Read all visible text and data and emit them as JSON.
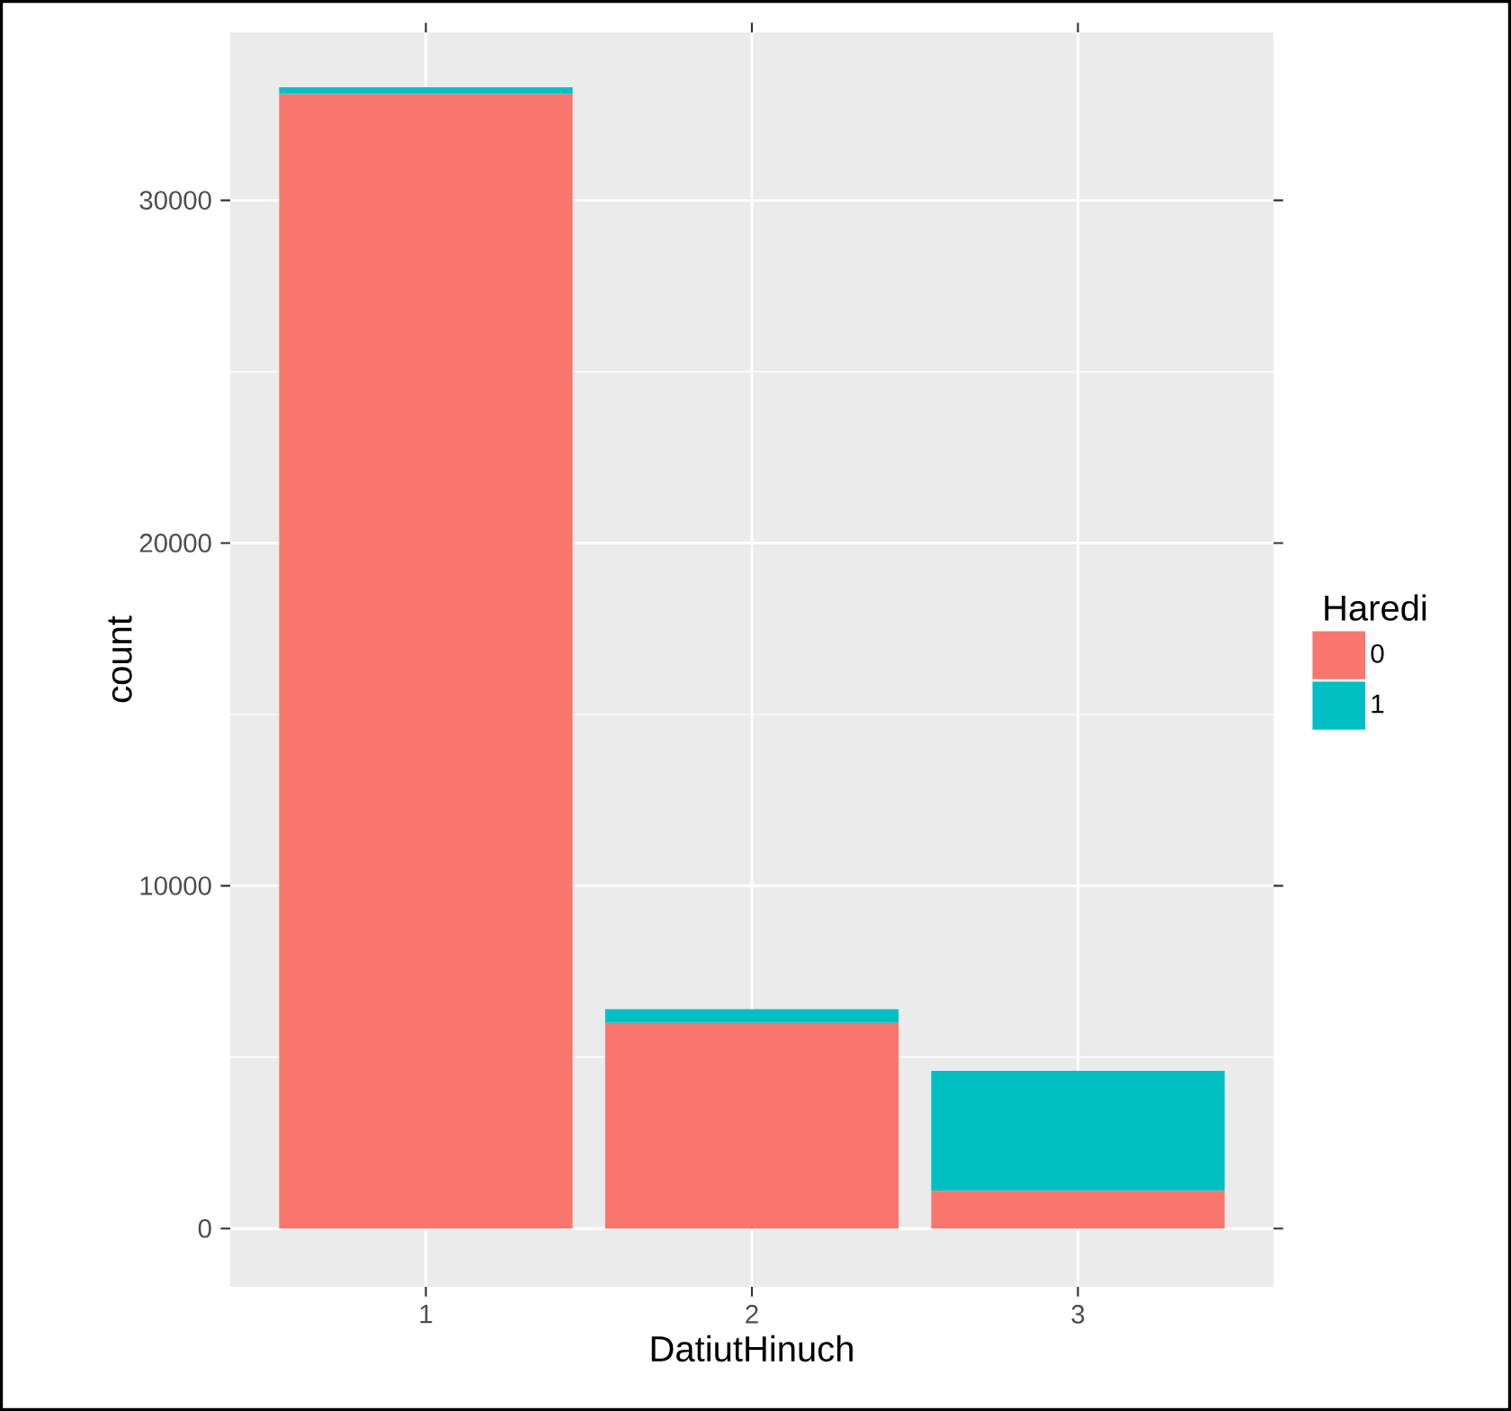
{
  "chart_data": {
    "type": "bar",
    "stacked": true,
    "xlabel": "DatiutHinuch",
    "ylabel": "count",
    "legend_title": "Haredi",
    "categories": [
      "1",
      "2",
      "3"
    ],
    "series": [
      {
        "name": "0",
        "color": "#f8766d",
        "values": [
          33100,
          6000,
          1100
        ]
      },
      {
        "name": "1",
        "color": "#00bfc4",
        "values": [
          200,
          400,
          3500
        ]
      }
    ],
    "ylim": [
      -1700,
      34900
    ],
    "yticks": [
      0,
      10000,
      20000,
      30000
    ],
    "grid": true,
    "legend": "right"
  }
}
